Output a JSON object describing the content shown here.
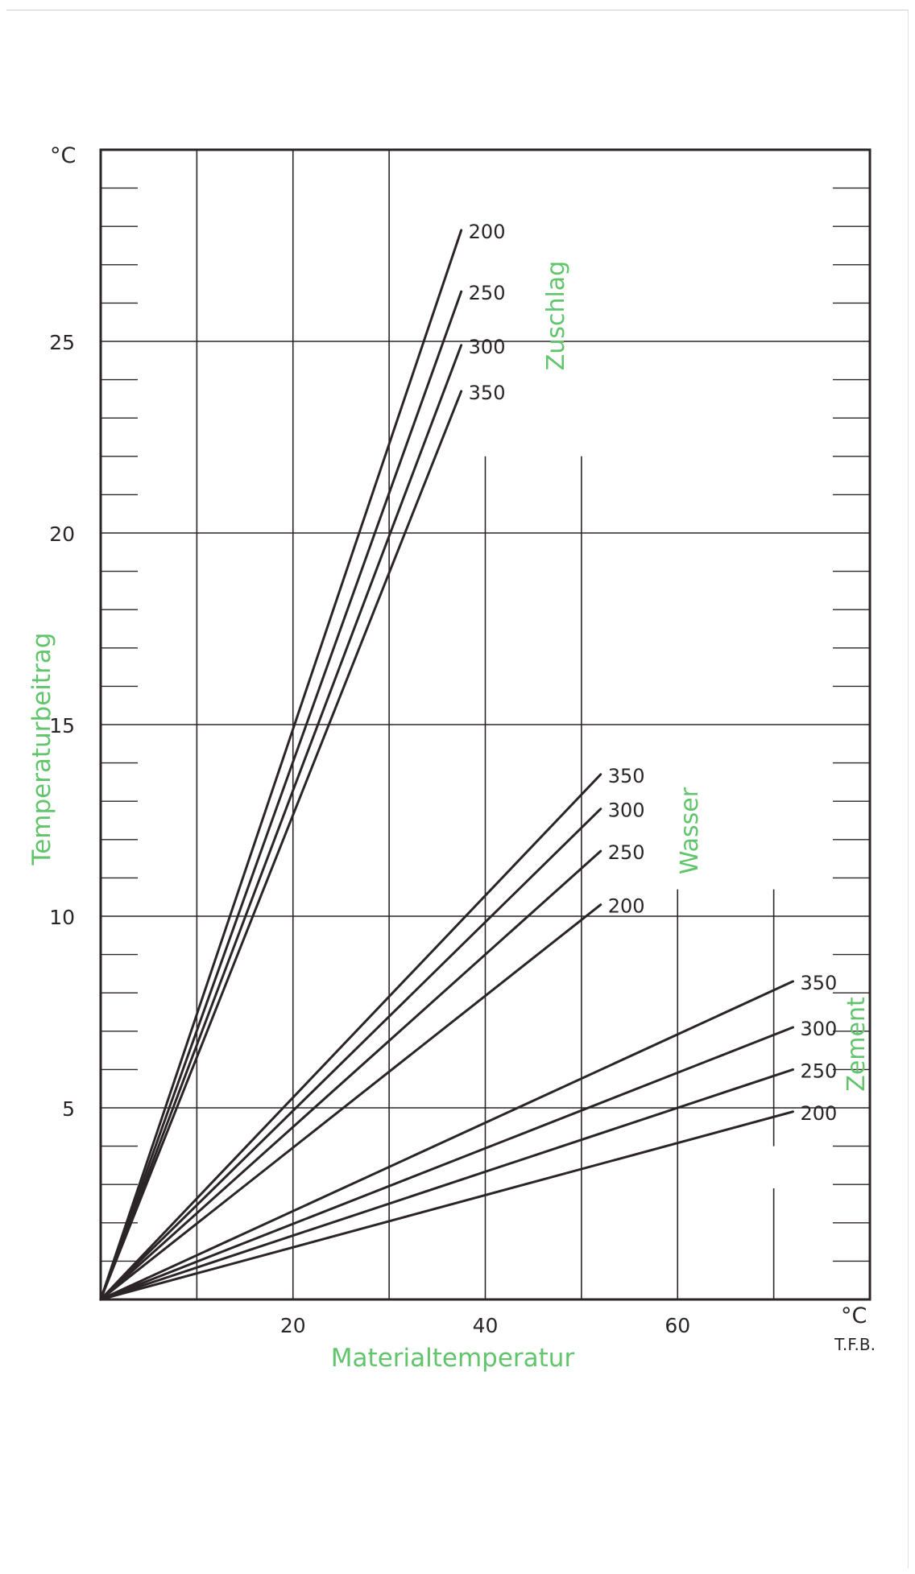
{
  "chart_data": {
    "type": "line",
    "xlabel": "Materialtemperatur",
    "ylabel": "Temperaturbeitrag",
    "x_unit": "°C",
    "y_unit": "°C",
    "xlim": [
      0,
      80
    ],
    "ylim": [
      0,
      30
    ],
    "x_ticks": [
      "20",
      "40",
      "60"
    ],
    "x_tick_values": [
      20,
      40,
      60
    ],
    "y_ticks": [
      "5",
      "10",
      "15",
      "20",
      "25"
    ],
    "y_tick_values": [
      5,
      10,
      15,
      20,
      25
    ],
    "grid": true,
    "credit": "T.F.B.",
    "colors": {
      "line": "#2b2528",
      "label_green": "#62c46c",
      "grid": "#2b2528"
    },
    "groups": [
      {
        "name": "Zuschlag",
        "series": [
          {
            "name": "200",
            "x": [
              0,
              37.5
            ],
            "y": [
              0,
              27.9
            ]
          },
          {
            "name": "250",
            "x": [
              0,
              37.5
            ],
            "y": [
              0,
              26.3
            ]
          },
          {
            "name": "300",
            "x": [
              0,
              37.5
            ],
            "y": [
              0,
              24.9
            ]
          },
          {
            "name": "350",
            "x": [
              0,
              37.5
            ],
            "y": [
              0,
              23.7
            ]
          }
        ]
      },
      {
        "name": "Wasser",
        "series": [
          {
            "name": "350",
            "x": [
              0,
              52
            ],
            "y": [
              0,
              13.7
            ]
          },
          {
            "name": "300",
            "x": [
              0,
              52
            ],
            "y": [
              0,
              12.8
            ]
          },
          {
            "name": "250",
            "x": [
              0,
              52
            ],
            "y": [
              0,
              11.7
            ]
          },
          {
            "name": "200",
            "x": [
              0,
              52
            ],
            "y": [
              0,
              10.3
            ]
          }
        ]
      },
      {
        "name": "Zement",
        "series": [
          {
            "name": "350",
            "x": [
              0,
              72
            ],
            "y": [
              0,
              8.3
            ]
          },
          {
            "name": "300",
            "x": [
              0,
              72
            ],
            "y": [
              0,
              7.1
            ]
          },
          {
            "name": "250",
            "x": [
              0,
              72
            ],
            "y": [
              0,
              6.0
            ]
          },
          {
            "name": "200",
            "x": [
              0,
              72
            ],
            "y": [
              0,
              4.9
            ]
          }
        ]
      }
    ]
  }
}
